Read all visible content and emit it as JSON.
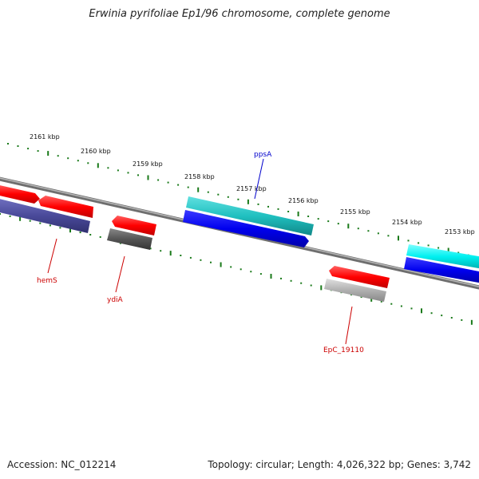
{
  "title": "Erwinia pyrifoliae Ep1/96 chromosome, complete genome",
  "footer": {
    "accession": "Accession: NC_012214",
    "summary": "Topology: circular; Length: 4,026,322 bp; Genes: 3,742"
  },
  "ticks": [
    "2161 kbp",
    "2160 kbp",
    "2159 kbp",
    "2158 kbp",
    "2157 kbp",
    "2156 kbp",
    "2155 kbp",
    "2154 kbp",
    "2153 kbp"
  ],
  "gene_labels": {
    "ppsA": "ppsA",
    "hemS": "hemS",
    "ydiA": "ydiA",
    "epc": "EpC_19110"
  },
  "colors": {
    "backbone": "#7a7a7a",
    "tick": "#1a7a1a",
    "red": "#ff0000",
    "blue": "#0000ee",
    "cyan": "#20c0c0",
    "slate": "#4a4a9a",
    "dark_gray": "#555555",
    "light_gray": "#aaaaaa",
    "label_red": "#cc0000",
    "label_blue": "#0000cc"
  }
}
